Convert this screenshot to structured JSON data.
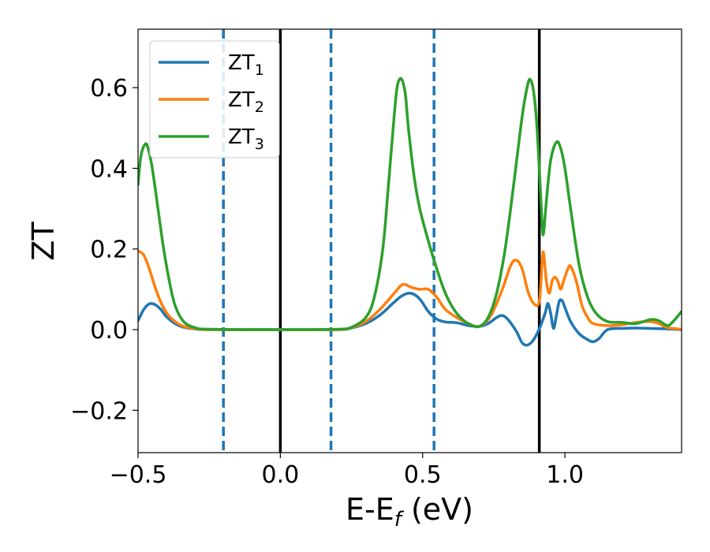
{
  "chart_data": {
    "type": "line",
    "title": "",
    "xlabel_main": "E-E",
    "xlabel_sub": "f",
    "xlabel_unit": " (eV)",
    "ylabel": "ZT",
    "xlim": [
      -0.5,
      1.41
    ],
    "ylim": [
      -0.305,
      0.745
    ],
    "x_ticks": [
      -0.5,
      0.0,
      0.5,
      1.0
    ],
    "x_tick_labels": [
      "−0.5",
      "0.0",
      "0.5",
      "1.0"
    ],
    "y_ticks": [
      -0.2,
      0.0,
      0.2,
      0.4,
      0.6
    ],
    "y_tick_labels": [
      "−0.2",
      "0.0",
      "0.2",
      "0.4",
      "0.6"
    ],
    "grid": false,
    "legend_position": "upper-left",
    "vertical_lines": [
      {
        "x": -0.2,
        "style": "dashed",
        "color": "#1f77b4"
      },
      {
        "x": 0.0,
        "style": "solid",
        "color": "#000000"
      },
      {
        "x": 0.178,
        "style": "dashed",
        "color": "#1f77b4"
      },
      {
        "x": 0.54,
        "style": "dashed",
        "color": "#1f77b4"
      },
      {
        "x": 0.91,
        "style": "solid",
        "color": "#000000"
      }
    ],
    "series": [
      {
        "name": "ZT",
        "subscript": "1",
        "color": "#1f77b4",
        "points": [
          [
            -0.5,
            0.022
          ],
          [
            -0.48,
            0.05
          ],
          [
            -0.46,
            0.064
          ],
          [
            -0.44,
            0.062
          ],
          [
            -0.42,
            0.05
          ],
          [
            -0.4,
            0.032
          ],
          [
            -0.37,
            0.015
          ],
          [
            -0.34,
            0.006
          ],
          [
            -0.3,
            0.002
          ],
          [
            -0.25,
            0.0
          ],
          [
            0.0,
            0.0
          ],
          [
            0.2,
            0.0
          ],
          [
            0.25,
            0.004
          ],
          [
            0.3,
            0.015
          ],
          [
            0.35,
            0.036
          ],
          [
            0.4,
            0.068
          ],
          [
            0.43,
            0.085
          ],
          [
            0.46,
            0.09
          ],
          [
            0.49,
            0.076
          ],
          [
            0.52,
            0.045
          ],
          [
            0.55,
            0.026
          ],
          [
            0.58,
            0.019
          ],
          [
            0.62,
            0.017
          ],
          [
            0.66,
            0.01
          ],
          [
            0.7,
            0.008
          ],
          [
            0.73,
            0.015
          ],
          [
            0.76,
            0.03
          ],
          [
            0.78,
            0.035
          ],
          [
            0.8,
            0.025
          ],
          [
            0.83,
            -0.005
          ],
          [
            0.85,
            -0.033
          ],
          [
            0.87,
            -0.038
          ],
          [
            0.89,
            -0.025
          ],
          [
            0.91,
            0.002
          ],
          [
            0.93,
            0.04
          ],
          [
            0.94,
            0.065
          ],
          [
            0.95,
            0.04
          ],
          [
            0.96,
            0.003
          ],
          [
            0.97,
            0.035
          ],
          [
            0.98,
            0.07
          ],
          [
            0.99,
            0.072
          ],
          [
            1.0,
            0.055
          ],
          [
            1.02,
            0.02
          ],
          [
            1.05,
            -0.01
          ],
          [
            1.08,
            -0.025
          ],
          [
            1.1,
            -0.03
          ],
          [
            1.12,
            -0.022
          ],
          [
            1.15,
            0.0
          ],
          [
            1.2,
            0.003
          ],
          [
            1.25,
            0.004
          ],
          [
            1.3,
            0.003
          ],
          [
            1.35,
            0.002
          ],
          [
            1.41,
            0.0
          ]
        ]
      },
      {
        "name": "ZT",
        "subscript": "2",
        "color": "#ff7f0e",
        "points": [
          [
            -0.5,
            0.195
          ],
          [
            -0.48,
            0.185
          ],
          [
            -0.46,
            0.15
          ],
          [
            -0.44,
            0.105
          ],
          [
            -0.42,
            0.068
          ],
          [
            -0.4,
            0.042
          ],
          [
            -0.37,
            0.02
          ],
          [
            -0.34,
            0.008
          ],
          [
            -0.3,
            0.003
          ],
          [
            -0.25,
            0.0
          ],
          [
            0.0,
            0.0
          ],
          [
            0.2,
            0.0
          ],
          [
            0.25,
            0.005
          ],
          [
            0.3,
            0.02
          ],
          [
            0.35,
            0.05
          ],
          [
            0.4,
            0.09
          ],
          [
            0.43,
            0.112
          ],
          [
            0.46,
            0.105
          ],
          [
            0.49,
            0.1
          ],
          [
            0.52,
            0.1
          ],
          [
            0.55,
            0.08
          ],
          [
            0.58,
            0.05
          ],
          [
            0.62,
            0.03
          ],
          [
            0.66,
            0.015
          ],
          [
            0.7,
            0.008
          ],
          [
            0.74,
            0.035
          ],
          [
            0.78,
            0.1
          ],
          [
            0.81,
            0.16
          ],
          [
            0.83,
            0.172
          ],
          [
            0.85,
            0.15
          ],
          [
            0.87,
            0.095
          ],
          [
            0.89,
            0.065
          ],
          [
            0.91,
            0.07
          ],
          [
            0.92,
            0.17
          ],
          [
            0.925,
            0.19
          ],
          [
            0.935,
            0.12
          ],
          [
            0.945,
            0.09
          ],
          [
            0.955,
            0.12
          ],
          [
            0.965,
            0.13
          ],
          [
            0.975,
            0.12
          ],
          [
            0.985,
            0.1
          ],
          [
            0.995,
            0.12
          ],
          [
            1.01,
            0.15
          ],
          [
            1.02,
            0.157
          ],
          [
            1.04,
            0.12
          ],
          [
            1.06,
            0.06
          ],
          [
            1.08,
            0.03
          ],
          [
            1.1,
            0.015
          ],
          [
            1.15,
            0.01
          ],
          [
            1.2,
            0.012
          ],
          [
            1.25,
            0.018
          ],
          [
            1.3,
            0.02
          ],
          [
            1.33,
            0.015
          ],
          [
            1.36,
            0.005
          ],
          [
            1.41,
            0.001
          ]
        ]
      },
      {
        "name": "ZT",
        "subscript": "3",
        "color": "#2ca02c",
        "points": [
          [
            -0.5,
            0.36
          ],
          [
            -0.49,
            0.43
          ],
          [
            -0.475,
            0.46
          ],
          [
            -0.465,
            0.45
          ],
          [
            -0.45,
            0.4
          ],
          [
            -0.43,
            0.3
          ],
          [
            -0.41,
            0.2
          ],
          [
            -0.39,
            0.12
          ],
          [
            -0.37,
            0.06
          ],
          [
            -0.34,
            0.02
          ],
          [
            -0.3,
            0.005
          ],
          [
            -0.25,
            0.001
          ],
          [
            0.0,
            0.0
          ],
          [
            0.2,
            0.001
          ],
          [
            0.25,
            0.006
          ],
          [
            0.3,
            0.03
          ],
          [
            0.33,
            0.08
          ],
          [
            0.36,
            0.2
          ],
          [
            0.38,
            0.36
          ],
          [
            0.4,
            0.53
          ],
          [
            0.41,
            0.6
          ],
          [
            0.42,
            0.622
          ],
          [
            0.43,
            0.615
          ],
          [
            0.44,
            0.58
          ],
          [
            0.45,
            0.5
          ],
          [
            0.47,
            0.38
          ],
          [
            0.49,
            0.3
          ],
          [
            0.52,
            0.22
          ],
          [
            0.55,
            0.15
          ],
          [
            0.58,
            0.09
          ],
          [
            0.61,
            0.05
          ],
          [
            0.64,
            0.025
          ],
          [
            0.67,
            0.012
          ],
          [
            0.7,
            0.008
          ],
          [
            0.73,
            0.03
          ],
          [
            0.76,
            0.09
          ],
          [
            0.79,
            0.2
          ],
          [
            0.82,
            0.36
          ],
          [
            0.85,
            0.53
          ],
          [
            0.87,
            0.61
          ],
          [
            0.88,
            0.618
          ],
          [
            0.89,
            0.59
          ],
          [
            0.9,
            0.52
          ],
          [
            0.91,
            0.4
          ],
          [
            0.92,
            0.26
          ],
          [
            0.925,
            0.24
          ],
          [
            0.935,
            0.32
          ],
          [
            0.95,
            0.42
          ],
          [
            0.97,
            0.465
          ],
          [
            0.985,
            0.45
          ],
          [
            1.0,
            0.4
          ],
          [
            1.02,
            0.3
          ],
          [
            1.05,
            0.16
          ],
          [
            1.08,
            0.08
          ],
          [
            1.11,
            0.04
          ],
          [
            1.15,
            0.02
          ],
          [
            1.2,
            0.018
          ],
          [
            1.25,
            0.015
          ],
          [
            1.3,
            0.025
          ],
          [
            1.33,
            0.022
          ],
          [
            1.36,
            0.01
          ],
          [
            1.38,
            0.02
          ],
          [
            1.41,
            0.045
          ]
        ]
      }
    ]
  }
}
